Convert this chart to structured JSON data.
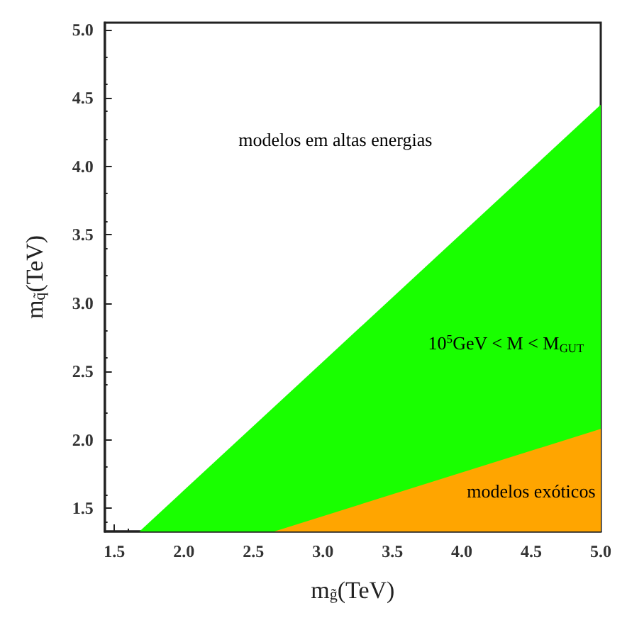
{
  "chart_data": {
    "type": "area",
    "xlabel": "m$_{g̃}$(TeV)",
    "ylabel": "m$_{q̃}$(TeV)",
    "xlim": [
      1.43,
      5.0
    ],
    "ylim": [
      1.33,
      5.05
    ],
    "xticks": [
      1.5,
      {
        "value": 2,
        "label": "2.0"
      },
      2.5,
      {
        "value": 3,
        "label": "3.0"
      },
      3.5,
      {
        "value": 4,
        "label": "4.0"
      },
      4.5,
      {
        "value": 5,
        "label": "5.0"
      }
    ],
    "yticks": [
      1.5,
      {
        "value": 2,
        "label": "2.0"
      },
      2.5,
      {
        "value": 3,
        "label": "3.0"
      },
      3.5,
      {
        "value": 4,
        "label": "4.0"
      },
      4.5,
      {
        "value": 5,
        "label": "5.0"
      }
    ],
    "grid": false,
    "series": [
      {
        "color": "#19ff00",
        "x": [
          1.68,
          5.0
        ],
        "values": [
          1.33,
          4.45
        ]
      },
      {
        "color": "#ffa500",
        "x": [
          2.65,
          5.0
        ],
        "values": [
          1.33,
          2.08
        ]
      }
    ],
    "annotations": [
      "modelos em altas energias",
      "10$^{5}$GeV < M < M$_{GUT}$",
      "modelos exóticos"
    ]
  }
}
